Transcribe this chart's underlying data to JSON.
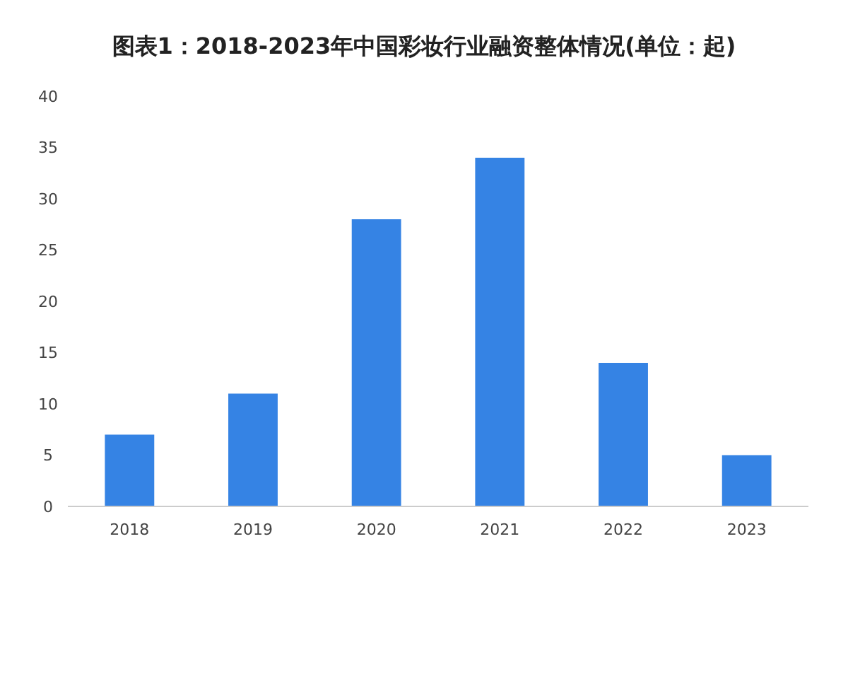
{
  "chart_data": {
    "type": "bar",
    "title": "图表1：2018-2023年中国彩妆行业融资整体情况(单位：起)",
    "categories": [
      "2018",
      "2019",
      "2020",
      "2021",
      "2022",
      "2023"
    ],
    "values": [
      7,
      11,
      28,
      34,
      14,
      5
    ],
    "color": "#3583e4",
    "ylim": [
      0,
      40
    ],
    "yticks": [
      0,
      5,
      10,
      15,
      20,
      25,
      30,
      35,
      40
    ],
    "grid": false
  }
}
